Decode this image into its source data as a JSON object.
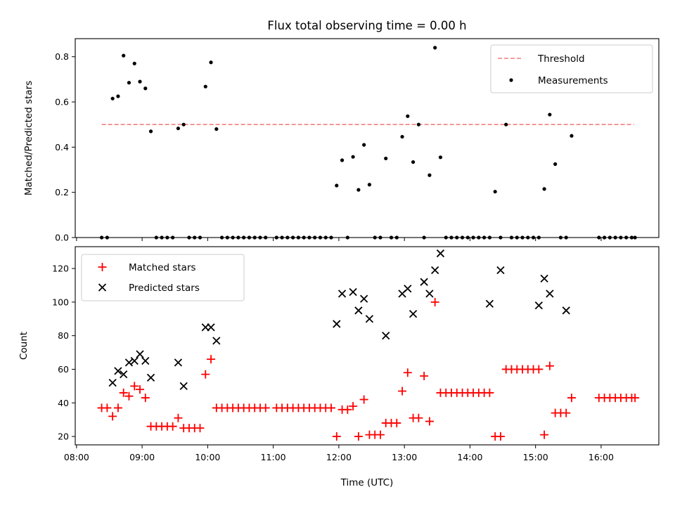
{
  "title": "Flux total observing time = 0.00 h",
  "x_axis": {
    "label": "Time (UTC)",
    "ticks": [
      "08:00",
      "09:00",
      "10:00",
      "11:00",
      "12:00",
      "13:00",
      "14:00",
      "15:00",
      "16:00"
    ],
    "range_hours": [
      7.98,
      16.88
    ]
  },
  "top_panel": {
    "ylabel": "Matched/Predicted stars",
    "yticks": [
      "0.0",
      "0.2",
      "0.4",
      "0.6",
      "0.8"
    ],
    "ylim": [
      0,
      0.88
    ],
    "legend": {
      "placement": "upper right",
      "threshold_label": "Threshold",
      "measurements_label": "Measurements"
    },
    "threshold_color": "#f08080"
  },
  "bottom_panel": {
    "ylabel": "Count",
    "yticks": [
      "20",
      "40",
      "60",
      "80",
      "100",
      "120"
    ],
    "ylim": [
      15,
      133
    ],
    "legend": {
      "placement": "upper left",
      "matched_label": "Matched stars",
      "predicted_label": "Predicted stars"
    },
    "matched_color": "#ff0000",
    "predicted_color": "#000000"
  },
  "chart_data": [
    {
      "type": "scatter",
      "title": "Flux total observing time = 0.00 h",
      "xlabel": "",
      "ylabel": "Matched/Predicted stars",
      "ylim": [
        0,
        0.88
      ],
      "grid": false,
      "legend": "top-right",
      "threshold": {
        "name": "Threshold",
        "y": 0.5,
        "x": [
          "08:23",
          "16:30"
        ],
        "style": "dashed"
      },
      "series": [
        {
          "name": "Measurements",
          "x": [
            "08:23",
            "08:28",
            "08:33",
            "08:38",
            "08:43",
            "08:48",
            "08:53",
            "08:58",
            "09:03",
            "09:08",
            "09:13",
            "09:18",
            "09:23",
            "09:28",
            "09:33",
            "09:38",
            "09:43",
            "09:48",
            "09:53",
            "09:58",
            "10:03",
            "10:08",
            "10:13",
            "10:18",
            "10:23",
            "10:28",
            "10:33",
            "10:38",
            "10:43",
            "10:48",
            "10:53",
            "11:03",
            "11:08",
            "11:13",
            "11:18",
            "11:23",
            "11:28",
            "11:33",
            "11:38",
            "11:43",
            "11:48",
            "11:53",
            "11:58",
            "12:03",
            "12:08",
            "12:13",
            "12:18",
            "12:23",
            "12:28",
            "12:33",
            "12:38",
            "12:43",
            "12:48",
            "12:53",
            "12:58",
            "13:03",
            "13:08",
            "13:13",
            "13:18",
            "13:23",
            "13:28",
            "13:33",
            "13:38",
            "13:43",
            "13:48",
            "13:53",
            "13:58",
            "14:03",
            "14:08",
            "14:13",
            "14:18",
            "14:23",
            "14:28",
            "14:33",
            "14:38",
            "14:43",
            "14:48",
            "14:53",
            "14:58",
            "15:03",
            "15:08",
            "15:13",
            "15:18",
            "15:23",
            "15:28",
            "15:33",
            "15:58",
            "16:03",
            "16:08",
            "16:13",
            "16:18",
            "16:23",
            "16:28",
            "16:31"
          ],
          "y": [
            0,
            0,
            0.615,
            0.625,
            0.805,
            0.685,
            0.77,
            0.69,
            0.66,
            0.47,
            0,
            0,
            0,
            0,
            0.483,
            0.5,
            0,
            0,
            0,
            0.668,
            0.775,
            0.48,
            0,
            0,
            0,
            0,
            0,
            0,
            0,
            0,
            0,
            0,
            0,
            0,
            0,
            0,
            0,
            0,
            0,
            0,
            0,
            0,
            0.23,
            0.342,
            0,
            0.357,
            0.211,
            0.41,
            0.234,
            0,
            0,
            0.35,
            0,
            0,
            0.446,
            0.537,
            0.334,
            0.5,
            0,
            0.276,
            0.84,
            0.355,
            0,
            0,
            0,
            0,
            0,
            0,
            0,
            0,
            0,
            0.203,
            0,
            0.5,
            0,
            0,
            0,
            0,
            0,
            0,
            0.215,
            0.544,
            0.325,
            0,
            0,
            0.45,
            0,
            0,
            0,
            0,
            0,
            0,
            0,
            0
          ]
        }
      ]
    },
    {
      "type": "scatter",
      "title": "",
      "xlabel": "Time (UTC)",
      "ylabel": "Count",
      "ylim": [
        15,
        133
      ],
      "grid": false,
      "legend": "top-left",
      "series": [
        {
          "name": "Matched stars",
          "x": [
            "08:23",
            "08:28",
            "08:33",
            "08:38",
            "08:43",
            "08:48",
            "08:53",
            "08:58",
            "09:03",
            "09:08",
            "09:13",
            "09:18",
            "09:23",
            "09:28",
            "09:33",
            "09:38",
            "09:43",
            "09:48",
            "09:53",
            "09:58",
            "10:03",
            "10:08",
            "10:13",
            "10:18",
            "10:23",
            "10:28",
            "10:33",
            "10:38",
            "10:43",
            "10:48",
            "10:53",
            "11:03",
            "11:08",
            "11:13",
            "11:18",
            "11:23",
            "11:28",
            "11:33",
            "11:38",
            "11:43",
            "11:48",
            "11:53",
            "11:58",
            "12:03",
            "12:08",
            "12:13",
            "12:18",
            "12:23",
            "12:28",
            "12:33",
            "12:38",
            "12:43",
            "12:48",
            "12:53",
            "12:58",
            "13:03",
            "13:08",
            "13:13",
            "13:18",
            "13:23",
            "13:28",
            "13:33",
            "13:38",
            "13:43",
            "13:48",
            "13:53",
            "13:58",
            "14:03",
            "14:08",
            "14:13",
            "14:18",
            "14:23",
            "14:28",
            "14:33",
            "14:38",
            "14:43",
            "14:48",
            "14:53",
            "14:58",
            "15:03",
            "15:08",
            "15:13",
            "15:18",
            "15:23",
            "15:28",
            "15:33",
            "15:58",
            "16:03",
            "16:08",
            "16:13",
            "16:18",
            "16:23",
            "16:28",
            "16:31"
          ],
          "y": [
            37,
            37,
            32,
            37,
            46,
            44,
            50,
            48,
            43,
            26,
            26,
            26,
            26,
            26,
            31,
            25,
            25,
            25,
            25,
            57,
            66,
            37,
            37,
            37,
            37,
            37,
            37,
            37,
            37,
            37,
            37,
            37,
            37,
            37,
            37,
            37,
            37,
            37,
            37,
            37,
            37,
            37,
            20,
            36,
            36,
            38,
            20,
            42,
            21,
            21,
            21,
            28,
            28,
            28,
            47,
            58,
            31,
            31,
            56,
            29,
            100,
            46,
            46,
            46,
            46,
            46,
            46,
            46,
            46,
            46,
            46,
            20,
            20,
            60,
            60,
            60,
            60,
            60,
            60,
            60,
            21,
            62,
            34,
            34,
            34,
            43,
            43,
            43,
            43,
            43,
            43,
            43,
            43,
            43
          ]
        },
        {
          "name": "Predicted stars",
          "x": [
            "08:33",
            "08:38",
            "08:43",
            "08:48",
            "08:53",
            "08:58",
            "09:03",
            "09:08",
            "09:33",
            "09:38",
            "09:58",
            "10:03",
            "10:08",
            "11:58",
            "12:03",
            "12:13",
            "12:18",
            "12:23",
            "12:28",
            "12:43",
            "12:58",
            "13:03",
            "13:08",
            "13:18",
            "13:23",
            "13:28",
            "13:33",
            "14:18",
            "14:28",
            "15:03",
            "15:08",
            "15:13",
            "15:28"
          ],
          "y": [
            52,
            59,
            57,
            64,
            65,
            69,
            65,
            55,
            64,
            50,
            85,
            85,
            77,
            87,
            105,
            106,
            95,
            102,
            90,
            80,
            105,
            108,
            93,
            112,
            105,
            119,
            129,
            99,
            119,
            98,
            114,
            105,
            95
          ]
        }
      ]
    }
  ]
}
